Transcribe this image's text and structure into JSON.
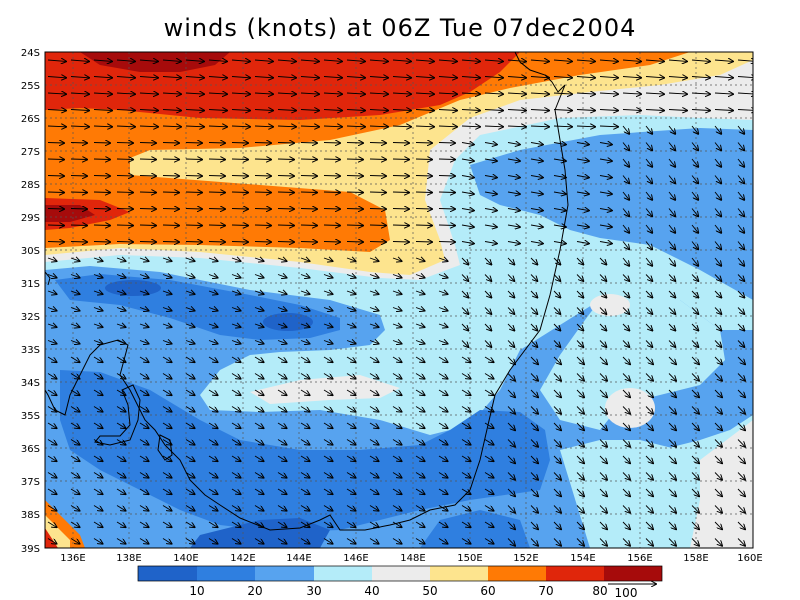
{
  "title": "winds (knots) at 06Z Tue 07dec2004",
  "colors": {
    "c0_10": "#1f63c9",
    "c10_20": "#2f7fe0",
    "c20_30": "#57a3ef",
    "c30_40": "#b4ecf9",
    "c40_50": "#ececec",
    "c50_60": "#fde48e",
    "c60_70": "#ff7a05",
    "c70_80": "#e0260b",
    "c80p": "#a60b0b"
  },
  "axes": {
    "lat_labels": [
      "24S",
      "25S",
      "26S",
      "27S",
      "28S",
      "29S",
      "30S",
      "31S",
      "32S",
      "33S",
      "34S",
      "35S",
      "36S",
      "37S",
      "38S",
      "39S"
    ],
    "lon_labels": [
      "136E",
      "138E",
      "140E",
      "142E",
      "144E",
      "146E",
      "148E",
      "150E",
      "152E",
      "154E",
      "156E",
      "158E",
      "160E"
    ]
  },
  "colorbar": {
    "labels": [
      "10",
      "20",
      "30",
      "40",
      "50",
      "60",
      "70",
      "80"
    ],
    "reference_vector_label": "100"
  }
}
